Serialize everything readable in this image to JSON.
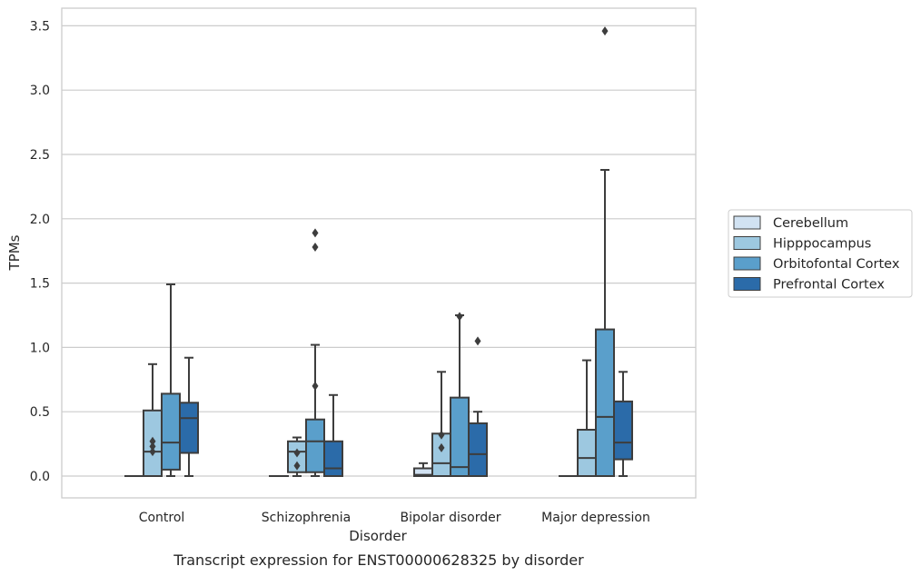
{
  "chart_data": {
    "type": "box",
    "xlabel": "Disorder",
    "ylabel": "TPMs",
    "caption": "Transcript expression for ENST00000628325 by disorder",
    "ylim": [
      -0.17,
      3.64
    ],
    "yticks": [
      0.0,
      0.5,
      1.0,
      1.5,
      2.0,
      2.5,
      3.0,
      3.5
    ],
    "ytick_labels": [
      "0.0",
      "0.5",
      "1.0",
      "1.5",
      "2.0",
      "2.5",
      "3.0",
      "3.5"
    ],
    "grid": "horizontal",
    "legend_position": "right",
    "categories": [
      "Control",
      "Schizophrenia",
      "Bipolar disorder",
      "Major depression"
    ],
    "series": [
      {
        "name": "Cerebellum",
        "color": "#d1e2f2",
        "boxes": [
          {
            "q1": 0.0,
            "median": 0.0,
            "q3": 0.0,
            "whisker_low": 0.0,
            "whisker_high": 0.0,
            "outliers": []
          },
          {
            "q1": 0.0,
            "median": 0.0,
            "q3": 0.0,
            "whisker_low": 0.0,
            "whisker_high": 0.0,
            "outliers": []
          },
          {
            "q1": 0.0,
            "median": 0.01,
            "q3": 0.06,
            "whisker_low": 0.0,
            "whisker_high": 0.1,
            "outliers": []
          },
          {
            "q1": 0.0,
            "median": 0.0,
            "q3": 0.0,
            "whisker_low": 0.0,
            "whisker_high": 0.0,
            "outliers": []
          }
        ]
      },
      {
        "name": "Hipppocampus",
        "color": "#9dc8e0",
        "boxes": [
          {
            "q1": 0.0,
            "median": 0.19,
            "q3": 0.51,
            "whisker_low": 0.0,
            "whisker_high": 0.87,
            "outliers": [
              0.27,
              0.23,
              0.19
            ]
          },
          {
            "q1": 0.03,
            "median": 0.19,
            "q3": 0.27,
            "whisker_low": 0.0,
            "whisker_high": 0.3,
            "outliers": [
              0.18,
              0.08
            ]
          },
          {
            "q1": 0.0,
            "median": 0.1,
            "q3": 0.33,
            "whisker_low": 0.0,
            "whisker_high": 0.81,
            "outliers": [
              0.32,
              0.22
            ]
          },
          {
            "q1": 0.0,
            "median": 0.14,
            "q3": 0.36,
            "whisker_low": 0.0,
            "whisker_high": 0.9,
            "outliers": []
          }
        ]
      },
      {
        "name": "Orbitofontal Cortex",
        "color": "#5a9fcb",
        "boxes": [
          {
            "q1": 0.05,
            "median": 0.26,
            "q3": 0.64,
            "whisker_low": 0.0,
            "whisker_high": 1.49,
            "outliers": []
          },
          {
            "q1": 0.03,
            "median": 0.27,
            "q3": 0.44,
            "whisker_low": 0.0,
            "whisker_high": 1.02,
            "outliers": [
              0.7,
              1.89,
              1.78
            ]
          },
          {
            "q1": 0.0,
            "median": 0.07,
            "q3": 0.61,
            "whisker_low": 0.0,
            "whisker_high": 1.25,
            "outliers": [
              1.24
            ]
          },
          {
            "q1": 0.0,
            "median": 0.46,
            "q3": 1.14,
            "whisker_low": 0.0,
            "whisker_high": 2.38,
            "outliers": [
              3.46
            ]
          }
        ]
      },
      {
        "name": "Prefrontal Cortex",
        "color": "#2b6ba9",
        "boxes": [
          {
            "q1": 0.18,
            "median": 0.45,
            "q3": 0.57,
            "whisker_low": 0.0,
            "whisker_high": 0.92,
            "outliers": []
          },
          {
            "q1": 0.0,
            "median": 0.06,
            "q3": 0.27,
            "whisker_low": 0.0,
            "whisker_high": 0.63,
            "outliers": []
          },
          {
            "q1": 0.0,
            "median": 0.17,
            "q3": 0.41,
            "whisker_low": 0.0,
            "whisker_high": 0.5,
            "outliers": [
              1.05
            ]
          },
          {
            "q1": 0.13,
            "median": 0.26,
            "q3": 0.58,
            "whisker_low": 0.0,
            "whisker_high": 0.81,
            "outliers": []
          }
        ]
      }
    ]
  }
}
